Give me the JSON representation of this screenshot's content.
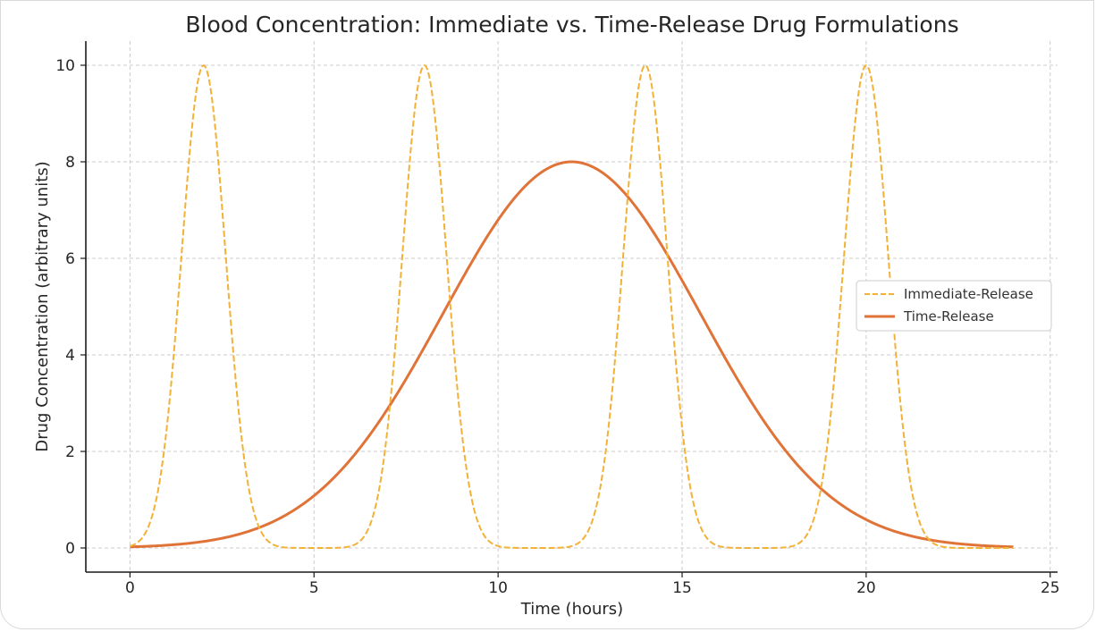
{
  "chart_data": {
    "type": "line",
    "title": "Blood Concentration: Immediate vs. Time-Release Drug Formulations",
    "xlabel": "Time (hours)",
    "ylabel": "Drug Concentration (arbitrary units)",
    "xlim": [
      -1.2,
      25.2
    ],
    "ylim": [
      -0.5,
      10.5
    ],
    "xticks": [
      0,
      5,
      10,
      15,
      20,
      25
    ],
    "yticks": [
      0,
      2,
      4,
      6,
      8,
      10
    ],
    "grid": true,
    "legend_position": "center-right",
    "series": [
      {
        "name": "Immediate-Release",
        "color": "#f2b137",
        "style": "dashed",
        "model": "sum of gaussian pulses",
        "peaks_x": [
          2,
          8,
          14,
          20
        ],
        "peak_y": 10,
        "pulse_sigma": 0.6,
        "x_range": [
          0,
          24
        ]
      },
      {
        "name": "Time-Release",
        "color": "#e07338",
        "style": "solid",
        "model": "gaussian",
        "peak_x": 12,
        "peak_y": 8,
        "sigma": 3.5,
        "x_range": [
          0,
          24
        ]
      }
    ]
  }
}
